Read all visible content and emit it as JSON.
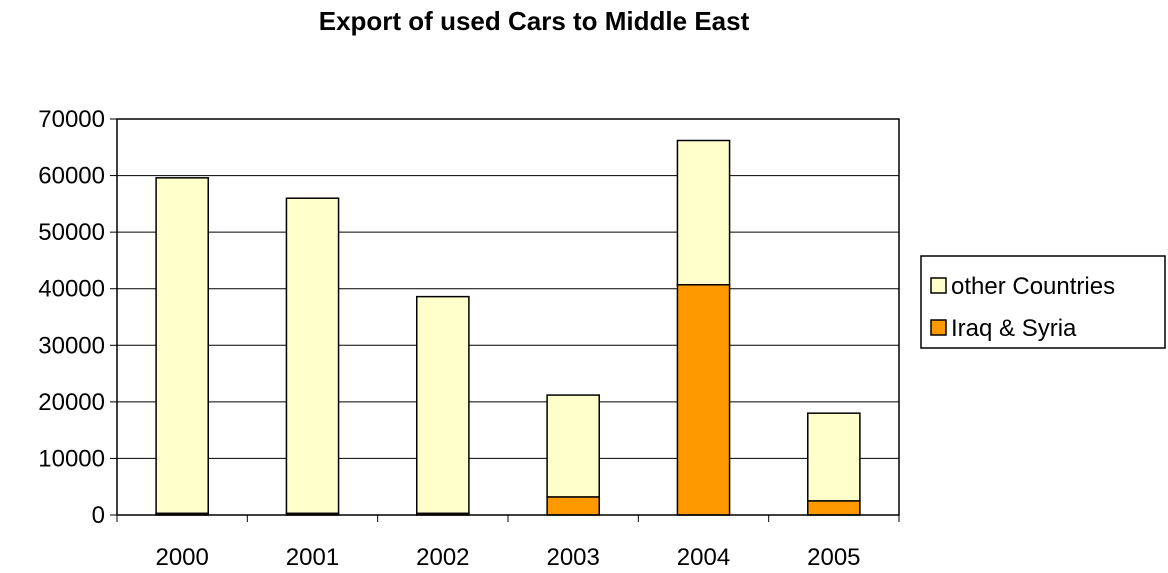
{
  "chart_data": {
    "type": "bar",
    "stacked": true,
    "title": "Export of used Cars to Middle East",
    "xlabel": "",
    "ylabel": "",
    "categories": [
      "2000",
      "2001",
      "2002",
      "2003",
      "2004",
      "2005"
    ],
    "series": [
      {
        "name": "Iraq & Syria",
        "values": [
          300,
          300,
          300,
          3200,
          40700,
          2500
        ],
        "color": "#ff9900"
      },
      {
        "name": "other Countries",
        "values": [
          59300,
          55700,
          38300,
          18000,
          25500,
          15500
        ],
        "color": "#ffffcc"
      }
    ],
    "ylim": [
      0,
      70000
    ],
    "yticks": [
      0,
      10000,
      20000,
      30000,
      40000,
      50000,
      60000,
      70000
    ],
    "grid": true,
    "legend_position": "right"
  }
}
